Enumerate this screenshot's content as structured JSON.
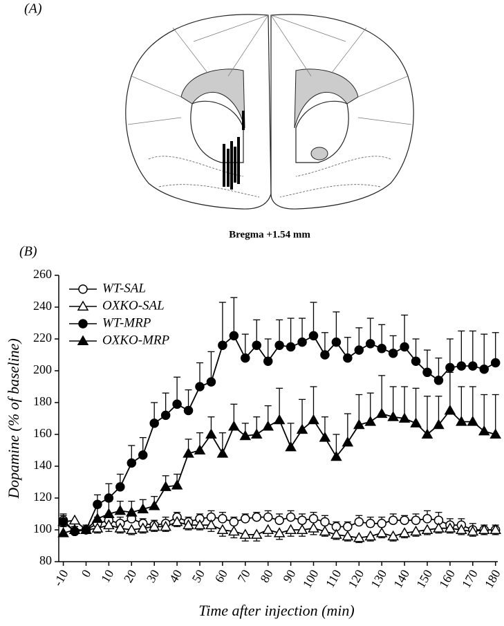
{
  "panel_a": {
    "label": "(A)",
    "caption": "Bregma +1.54 mm"
  },
  "chart_data": {
    "type": "line",
    "panel_label": "(B)",
    "x_label": "Time after injection (min)",
    "y_label": "Dopamine (% of baseline)",
    "x": [
      -10,
      -5,
      0,
      5,
      10,
      15,
      20,
      25,
      30,
      35,
      40,
      45,
      50,
      55,
      60,
      65,
      70,
      75,
      80,
      85,
      90,
      95,
      100,
      105,
      110,
      115,
      120,
      125,
      130,
      135,
      140,
      145,
      150,
      155,
      160,
      165,
      170,
      175,
      180
    ],
    "xlim": [
      -12,
      181
    ],
    "ylim": [
      80,
      260
    ],
    "xticks": [
      -10,
      0,
      10,
      20,
      30,
      40,
      50,
      60,
      70,
      80,
      90,
      100,
      110,
      120,
      130,
      140,
      150,
      160,
      170,
      180
    ],
    "yticks": [
      80,
      100,
      120,
      140,
      160,
      180,
      200,
      220,
      240,
      260
    ],
    "legend": "upper left",
    "series": [
      {
        "name": "WT-SAL",
        "color": "#000000",
        "marker": "circle",
        "filled": false,
        "error_bar": "up",
        "values": [
          106,
          99,
          100,
          104,
          106,
          104,
          107,
          104,
          103,
          104,
          108,
          105,
          107,
          108,
          107,
          105,
          107,
          108,
          108,
          106,
          108,
          106,
          107,
          105,
          102,
          102,
          105,
          104,
          104,
          106,
          106,
          106,
          107,
          106,
          103,
          103,
          100,
          100,
          100
        ],
        "errors": [
          4,
          3,
          2,
          4,
          4,
          4,
          4,
          3,
          3,
          4,
          3,
          3,
          3,
          4,
          4,
          3,
          3,
          3,
          4,
          4,
          4,
          4,
          4,
          4,
          3,
          3,
          4,
          4,
          4,
          4,
          3,
          4,
          5,
          5,
          4,
          4,
          4,
          3,
          3
        ]
      },
      {
        "name": "OXKO-SAL",
        "color": "#000000",
        "marker": "triangle",
        "filled": false,
        "error_bar": "down",
        "values": [
          105,
          106,
          100,
          101,
          103,
          101,
          100,
          101,
          102,
          102,
          105,
          103,
          103,
          103,
          100,
          99,
          97,
          97,
          100,
          98,
          100,
          100,
          101,
          99,
          97,
          96,
          95,
          96,
          98,
          96,
          98,
          99,
          100,
          101,
          101,
          100,
          99,
          100,
          100
        ],
        "errors": [
          3,
          4,
          2,
          3,
          4,
          3,
          3,
          3,
          3,
          3,
          3,
          3,
          3,
          4,
          4,
          4,
          4,
          4,
          4,
          4,
          4,
          4,
          4,
          3,
          3,
          3,
          3,
          3,
          3,
          3,
          3,
          3,
          3,
          3,
          3,
          3,
          3,
          3,
          3
        ]
      },
      {
        "name": "WT-MRP",
        "color": "#000000",
        "marker": "circle",
        "filled": true,
        "error_bar": "up",
        "values": [
          105,
          99,
          100,
          116,
          120,
          127,
          142,
          147,
          167,
          172,
          179,
          175,
          190,
          193,
          216,
          222,
          208,
          216,
          206,
          216,
          215,
          218,
          222,
          210,
          218,
          208,
          213,
          217,
          214,
          211,
          215,
          206,
          199,
          194,
          202,
          203,
          203,
          201,
          205
        ],
        "errors": [
          4,
          3,
          2,
          6,
          9,
          8,
          11,
          11,
          13,
          14,
          17,
          13,
          15,
          19,
          27,
          24,
          15,
          16,
          14,
          16,
          18,
          15,
          21,
          14,
          19,
          13,
          14,
          16,
          15,
          11,
          20,
          14,
          14,
          14,
          18,
          22,
          22,
          22,
          19
        ]
      },
      {
        "name": "OXKO-MRP",
        "color": "#000000",
        "marker": "triangle",
        "filled": true,
        "error_bar": "up",
        "values": [
          98,
          100,
          100,
          107,
          110,
          112,
          111,
          113,
          115,
          127,
          128,
          148,
          150,
          160,
          148,
          165,
          159,
          160,
          165,
          169,
          152,
          163,
          169,
          158,
          146,
          155,
          166,
          168,
          173,
          171,
          170,
          167,
          160,
          166,
          175,
          168,
          168,
          162,
          160
        ],
        "errors": [
          8,
          5,
          3,
          7,
          8,
          6,
          7,
          6,
          6,
          7,
          7,
          9,
          11,
          11,
          13,
          14,
          8,
          11,
          13,
          20,
          15,
          19,
          21,
          13,
          14,
          18,
          19,
          18,
          24,
          19,
          20,
          22,
          24,
          18,
          24,
          22,
          22,
          23,
          25
        ]
      }
    ]
  }
}
